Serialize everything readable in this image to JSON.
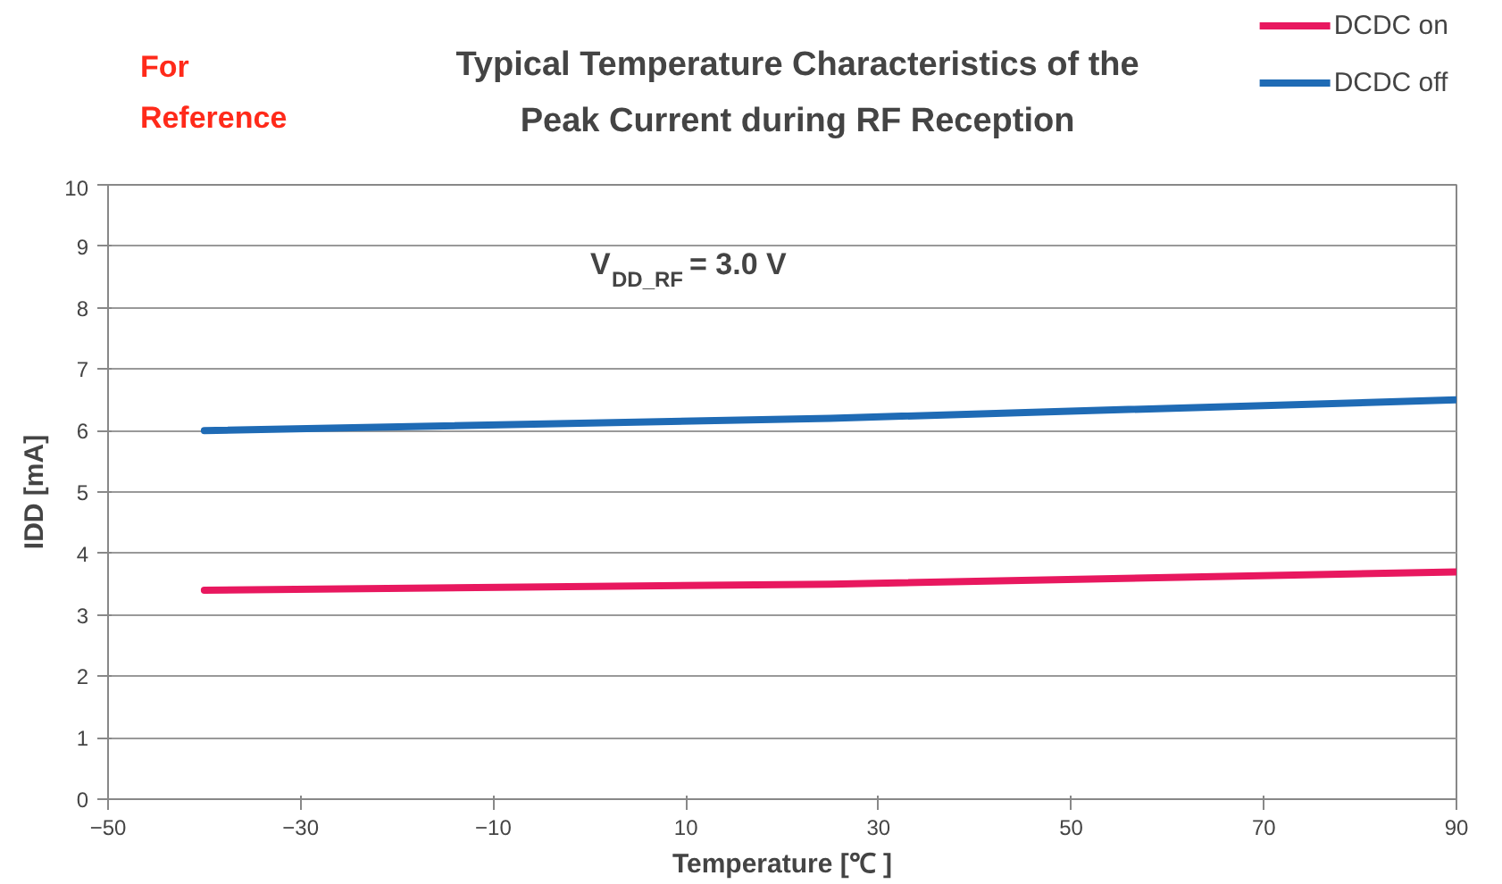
{
  "chart_data": {
    "type": "line",
    "title": "Typical Temperature Characteristics of the\nPeak Current during RF Reception",
    "xlabel": "Temperature [℃ ]",
    "ylabel": "IDD [mA]",
    "annotations": [
      "For\nReference",
      "V$_{DD_RF}$ = 3.0 V"
    ],
    "x": [
      -40,
      25,
      90
    ],
    "series": [
      {
        "name": "DCDC on",
        "color": "#e8185f",
        "values": [
          3.4,
          3.5,
          3.7
        ]
      },
      {
        "name": "DCDC off",
        "color": "#1f6bb5",
        "values": [
          6.0,
          6.2,
          6.5
        ]
      }
    ],
    "xlim": [
      -50,
      90
    ],
    "ylim": [
      0,
      10
    ],
    "xticks": [
      {
        "value": -50,
        "label": "−50"
      },
      {
        "value": -30,
        "label": "−30"
      },
      {
        "value": -10,
        "label": "−10"
      },
      10,
      30,
      50,
      70,
      90
    ],
    "yticks": [
      0,
      1,
      2,
      3,
      4,
      5,
      6,
      7,
      8,
      9,
      10
    ],
    "grid": "y",
    "legend": "top right",
    "marker": "none",
    "line_style": "solid"
  }
}
